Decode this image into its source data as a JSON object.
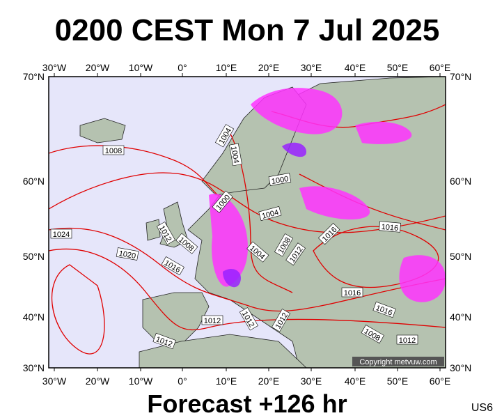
{
  "title": "0200 CEST Mon 7 Jul 2025",
  "forecast": "Forecast +126 hr",
  "code": "US6",
  "copyright": "Copyright metvuw.com",
  "longitudes": [
    "30°W",
    "20°W",
    "10°W",
    "0°",
    "10°E",
    "20°E",
    "30°E",
    "40°E",
    "50°E",
    "60°E"
  ],
  "latitudes": [
    "70°N",
    "60°N",
    "50°N",
    "40°N",
    "30°N"
  ],
  "isobar_labels": [
    "1008",
    "1004",
    "1004",
    "1000",
    "1000",
    "1004",
    "1012",
    "1008",
    "1024",
    "1020",
    "1016",
    "1004",
    "1008",
    "1012",
    "1016",
    "1016",
    "1016",
    "1016",
    "1012",
    "1012",
    "1012",
    "1008",
    "1012",
    "1012"
  ]
}
